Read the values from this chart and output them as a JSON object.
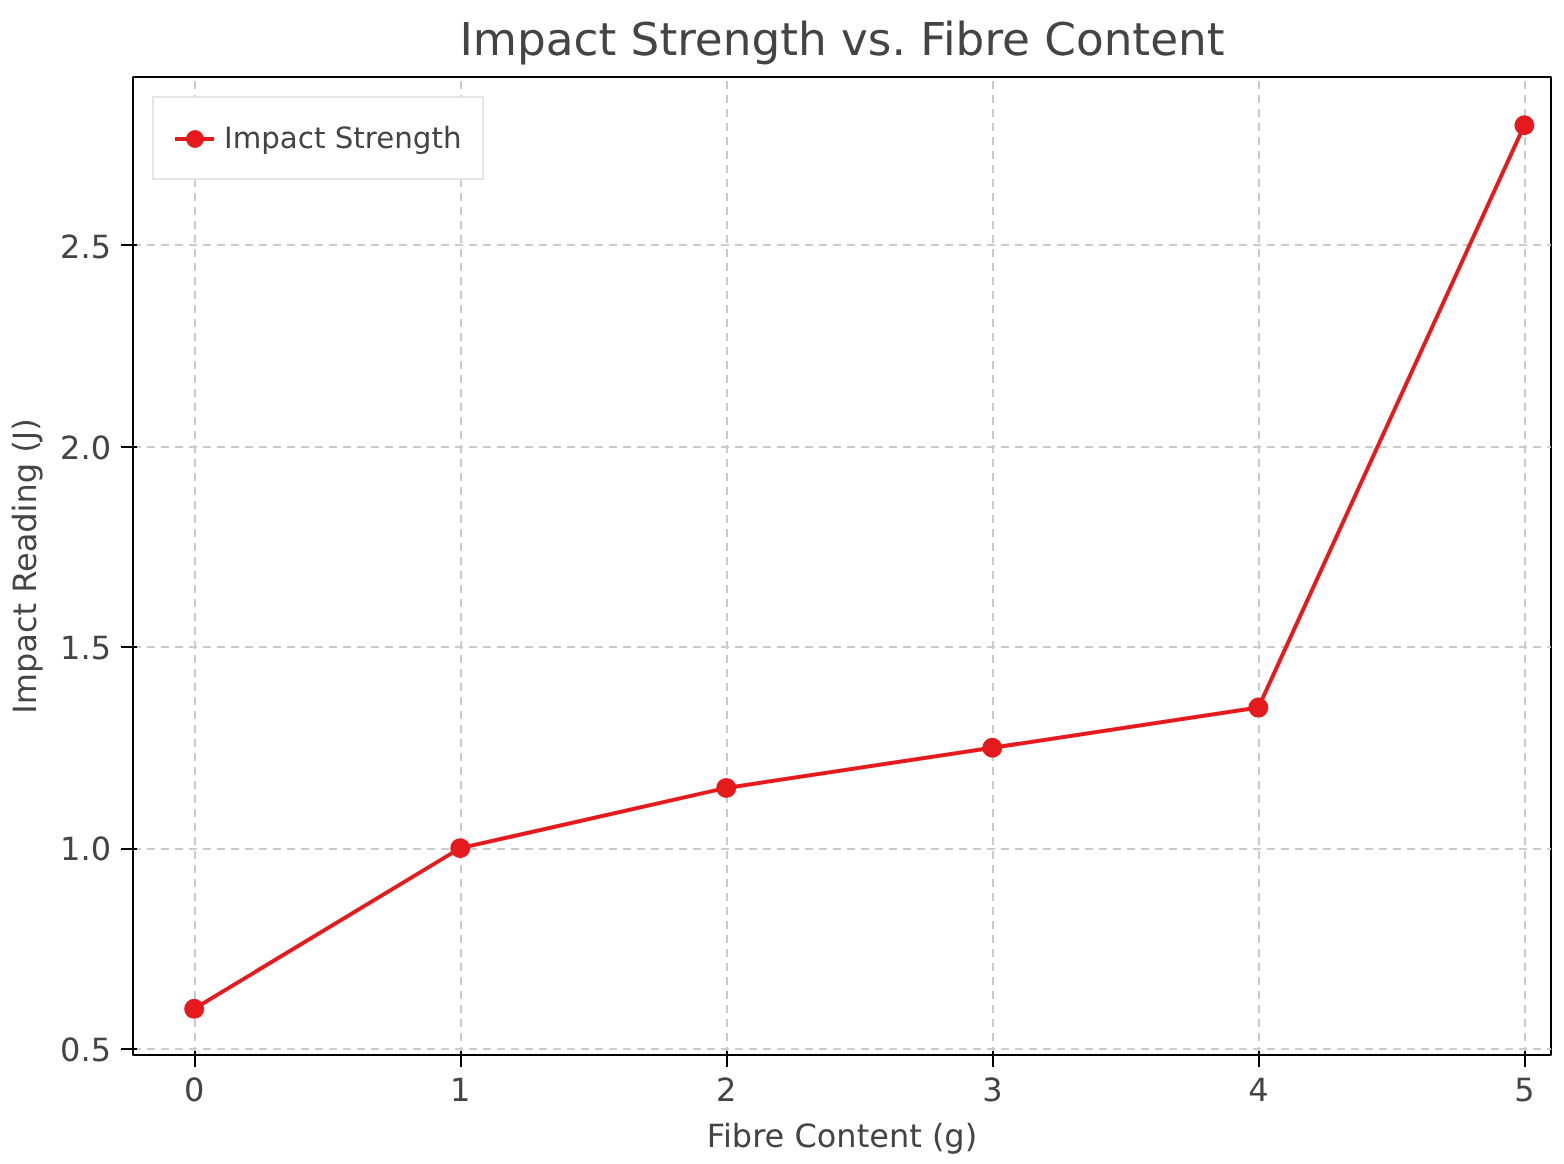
{
  "chart_data": {
    "type": "line",
    "title": "Impact Strength vs. Fibre Content",
    "xlabel": "Fibre Content (g)",
    "ylabel": "Impact Reading (J)",
    "x": [
      0,
      1,
      2,
      3,
      4,
      5
    ],
    "series": [
      {
        "name": "Impact Strength",
        "color": "#e41a1c",
        "values": [
          0.6,
          1.0,
          1.15,
          1.25,
          1.35,
          2.8
        ]
      }
    ],
    "xlim": [
      -0.23,
      5.1
    ],
    "xticks": [
      0,
      1,
      2,
      3,
      4,
      5
    ],
    "ylim": [
      0.485,
      2.92
    ],
    "yticks": [
      0.5,
      {
        "value": 1,
        "label": "1.0"
      },
      1.5,
      {
        "value": 2,
        "label": "2.0"
      },
      2.5
    ],
    "grid": true,
    "legend": "top left",
    "marker": "circle",
    "line_style": "solid"
  }
}
